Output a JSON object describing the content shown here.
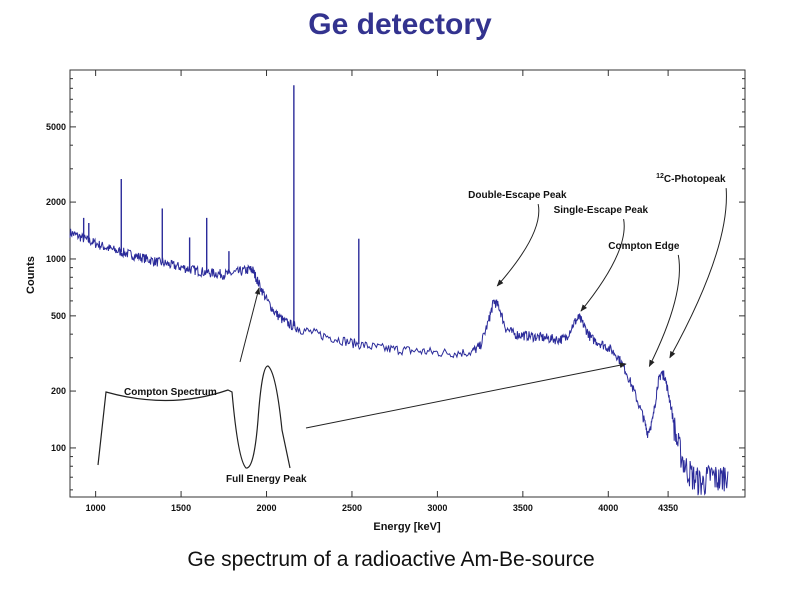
{
  "page": {
    "title": "Ge detectory",
    "caption": "Ge spectrum of a radioactive Am-Be-source"
  },
  "chart_data": {
    "type": "line",
    "title": "",
    "xlabel": "Energy [keV]",
    "ylabel": "Counts",
    "xlim": [
      850,
      4800
    ],
    "ylim": [
      55,
      10000
    ],
    "y_scale": "log",
    "grid": false,
    "x_ticks": [
      {
        "value": 1000,
        "label": "1000"
      },
      {
        "value": 1500,
        "label": "1500"
      },
      {
        "value": 2000,
        "label": "2000"
      },
      {
        "value": 2500,
        "label": "2500"
      },
      {
        "value": 3000,
        "label": "3000"
      },
      {
        "value": 3500,
        "label": "3500"
      },
      {
        "value": 4000,
        "label": "4000"
      },
      {
        "value": 4350,
        "label": "4350"
      }
    ],
    "y_ticks": [
      {
        "value": 100,
        "label": "100"
      },
      {
        "value": 200,
        "label": "200"
      },
      {
        "value": 500,
        "label": "500"
      },
      {
        "value": 1000,
        "label": "1000"
      },
      {
        "value": 2000,
        "label": "2000"
      },
      {
        "value": 5000,
        "label": "5000"
      }
    ],
    "series": [
      {
        "color": "#2b2b9a",
        "points": [
          [
            850,
            1380
          ],
          [
            900,
            1320
          ],
          [
            950,
            1260
          ],
          [
            1000,
            1210
          ],
          [
            1050,
            1160
          ],
          [
            1100,
            1120
          ],
          [
            1150,
            1090
          ],
          [
            1200,
            1060
          ],
          [
            1250,
            1030
          ],
          [
            1300,
            1000
          ],
          [
            1350,
            970
          ],
          [
            1400,
            950
          ],
          [
            1450,
            925
          ],
          [
            1500,
            905
          ],
          [
            1550,
            885
          ],
          [
            1600,
            865
          ],
          [
            1650,
            850
          ],
          [
            1700,
            840
          ],
          [
            1750,
            830
          ],
          [
            1800,
            840
          ],
          [
            1850,
            860
          ],
          [
            1900,
            880
          ],
          [
            1920,
            870
          ],
          [
            1950,
            760
          ],
          [
            2000,
            610
          ],
          [
            2050,
            520
          ],
          [
            2100,
            470
          ],
          [
            2150,
            445
          ],
          [
            2200,
            425
          ],
          [
            2300,
            400
          ],
          [
            2400,
            380
          ],
          [
            2500,
            360
          ],
          [
            2600,
            345
          ],
          [
            2700,
            335
          ],
          [
            2800,
            330
          ],
          [
            2900,
            325
          ],
          [
            3000,
            320
          ],
          [
            3100,
            318
          ],
          [
            3200,
            322
          ],
          [
            3250,
            345
          ],
          [
            3300,
            470
          ],
          [
            3330,
            600
          ],
          [
            3360,
            560
          ],
          [
            3400,
            430
          ],
          [
            3450,
            400
          ],
          [
            3500,
            395
          ],
          [
            3550,
            390
          ],
          [
            3600,
            385
          ],
          [
            3650,
            380
          ],
          [
            3700,
            375
          ],
          [
            3750,
            380
          ],
          [
            3800,
            460
          ],
          [
            3830,
            490
          ],
          [
            3860,
            440
          ],
          [
            3900,
            380
          ],
          [
            3950,
            360
          ],
          [
            4000,
            340
          ],
          [
            4050,
            310
          ],
          [
            4100,
            260
          ],
          [
            4150,
            200
          ],
          [
            4200,
            150
          ],
          [
            4230,
            120
          ],
          [
            4260,
            140
          ],
          [
            4290,
            220
          ],
          [
            4310,
            250
          ],
          [
            4330,
            240
          ],
          [
            4360,
            180
          ],
          [
            4400,
            110
          ],
          [
            4450,
            80
          ],
          [
            4500,
            70
          ],
          [
            4550,
            65
          ],
          [
            4600,
            72
          ],
          [
            4650,
            68
          ],
          [
            4700,
            75
          ]
        ],
        "spikes": [
          {
            "x": 930,
            "y": 1650
          },
          {
            "x": 960,
            "y": 1550
          },
          {
            "x": 1150,
            "y": 2650
          },
          {
            "x": 1390,
            "y": 1850
          },
          {
            "x": 1550,
            "y": 1300
          },
          {
            "x": 1650,
            "y": 1650
          },
          {
            "x": 1780,
            "y": 1100
          },
          {
            "x": 2160,
            "y": 8300
          },
          {
            "x": 2540,
            "y": 1280
          }
        ]
      }
    ],
    "annotations": [
      {
        "label": "Double-Escape Peak",
        "text_x": 3180,
        "text_y": 2100,
        "arrow_to_x": 3350,
        "arrow_to_y": 720
      },
      {
        "label": "Single-Escape Peak",
        "text_x": 3680,
        "text_y": 1750,
        "arrow_to_x": 3840,
        "arrow_to_y": 530
      },
      {
        "label": "Compton Edge",
        "text_x": 4000,
        "text_y": 1130,
        "arrow_to_x": 4240,
        "arrow_to_y": 270
      },
      {
        "label": "C-Photopeak",
        "superscript": "12",
        "text_x": 4280,
        "text_y": 2550,
        "arrow_to_x": 4360,
        "arrow_to_y": 300
      }
    ],
    "inset": {
      "compton_label": "Compton Spectrum",
      "peak_label": "Full Energy Peak"
    }
  }
}
